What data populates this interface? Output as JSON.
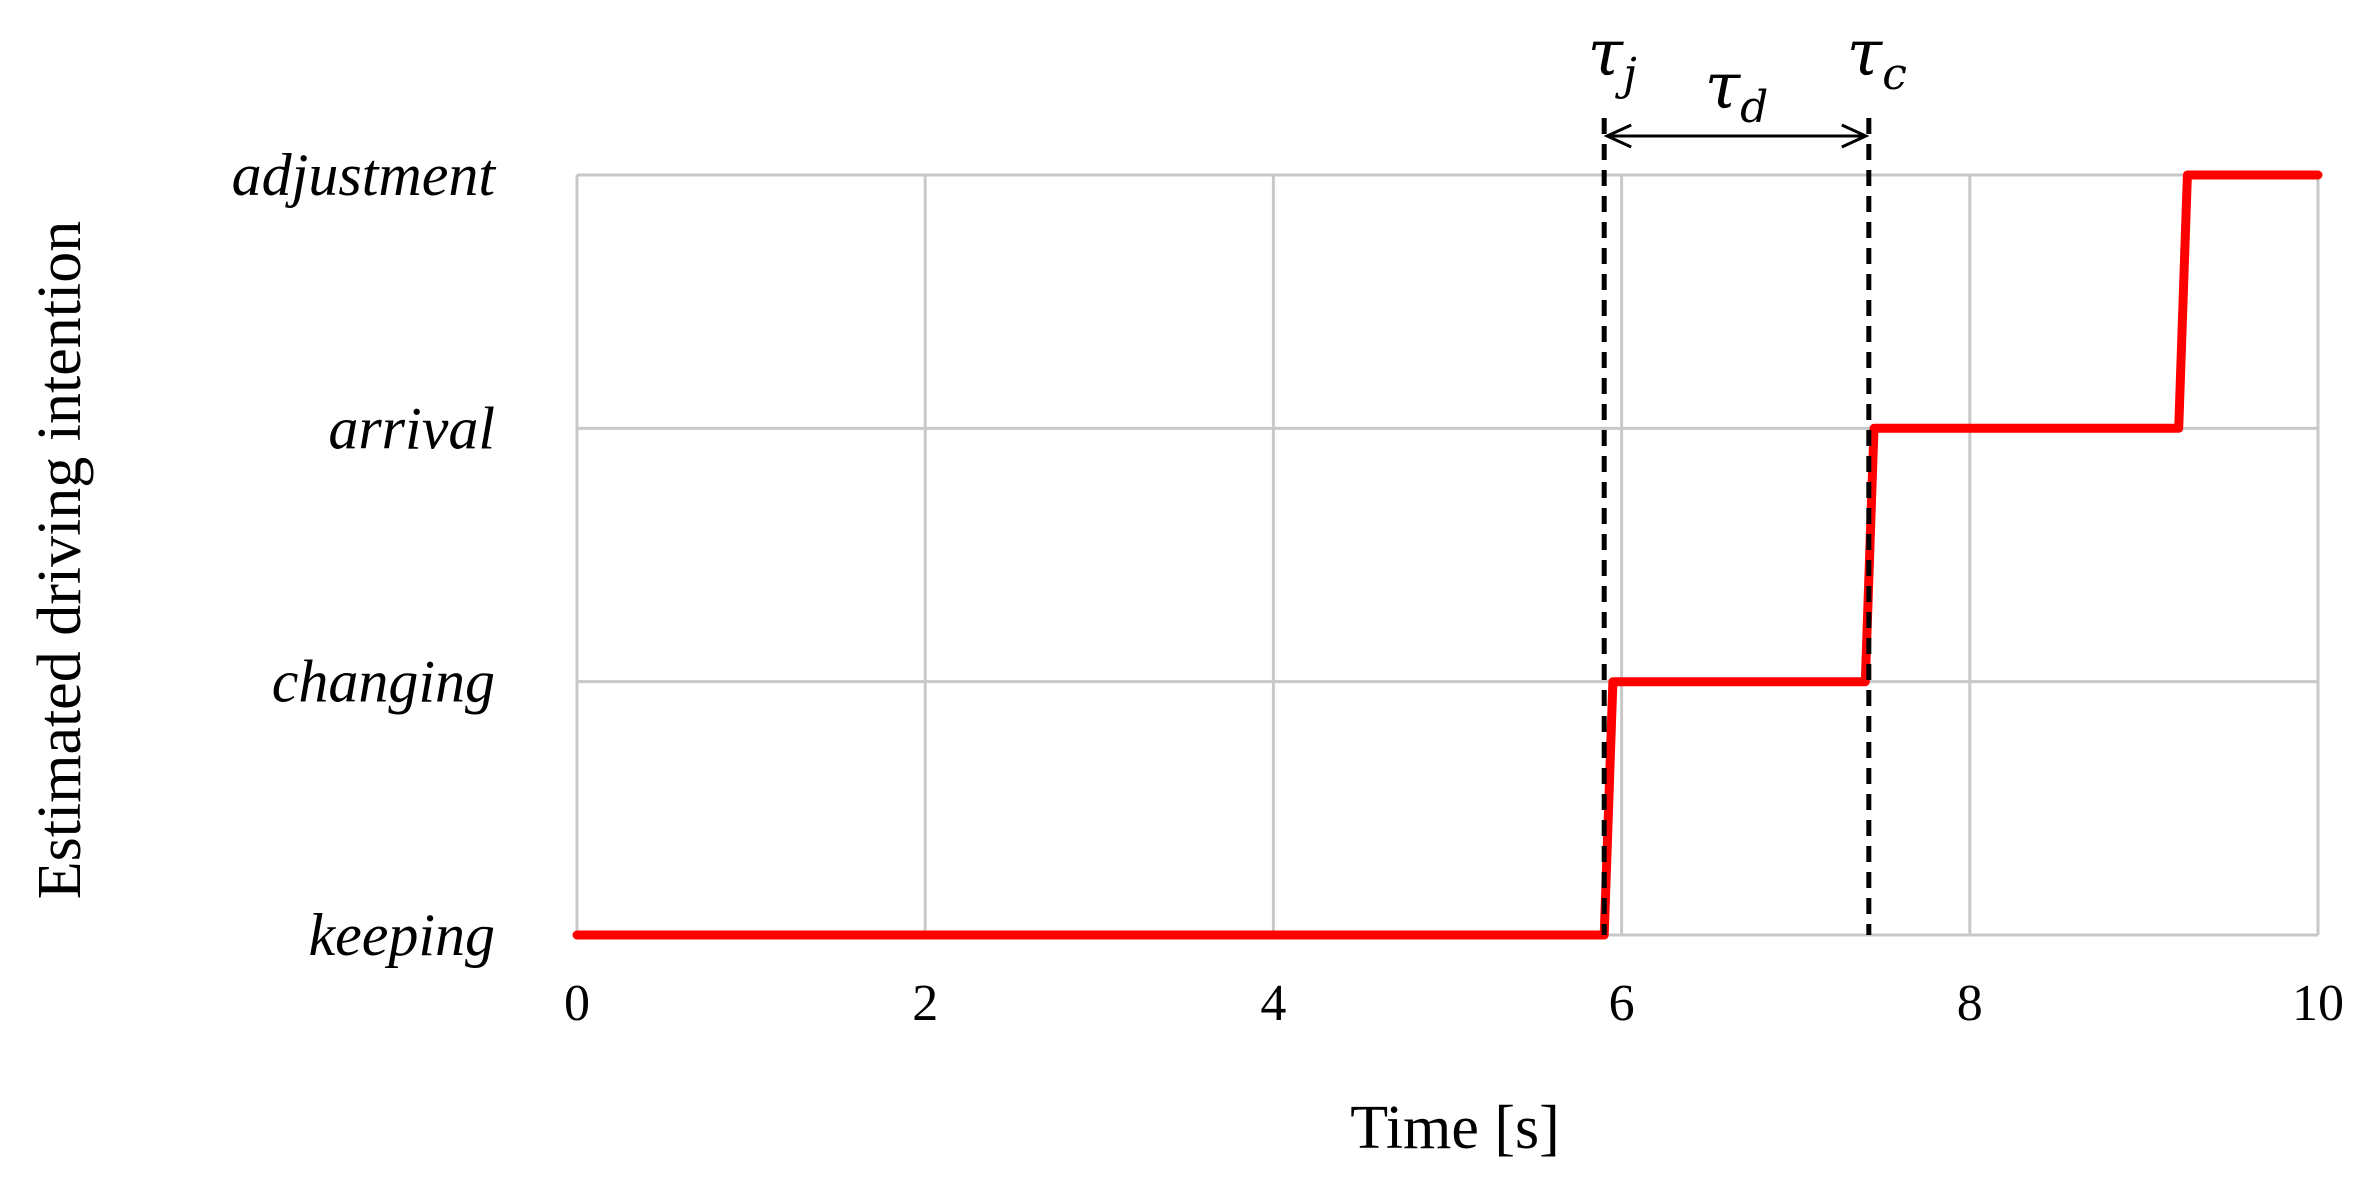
{
  "chart_data": {
    "type": "line",
    "title": "",
    "xlabel": "Time [s]",
    "ylabel": "Estimated driving intention",
    "xlim": [
      0,
      10
    ],
    "x_ticks": [
      0,
      2,
      4,
      6,
      8,
      10
    ],
    "x_tick_labels": [
      "0",
      "2",
      "4",
      "6",
      "8",
      "10"
    ],
    "categories_y": [
      "keeping",
      "changing",
      "arrival",
      "adjustment"
    ],
    "grid": true,
    "legend": "none",
    "series": [
      {
        "color": "#ff0000",
        "x": [
          0,
          5.9,
          5.95,
          7.4,
          7.45,
          9.2,
          9.25,
          10
        ],
        "y": [
          "keeping",
          "keeping",
          "changing",
          "changing",
          "arrival",
          "arrival",
          "adjustment",
          "adjustment"
        ]
      }
    ],
    "markers": [
      {
        "x": 5.9,
        "symbol": "τ",
        "sub": "j"
      },
      {
        "x": 7.42,
        "symbol": "τ",
        "sub": "c"
      }
    ],
    "interval": {
      "from": 5.9,
      "to": 7.42,
      "symbol": "τ",
      "sub": "d"
    }
  }
}
